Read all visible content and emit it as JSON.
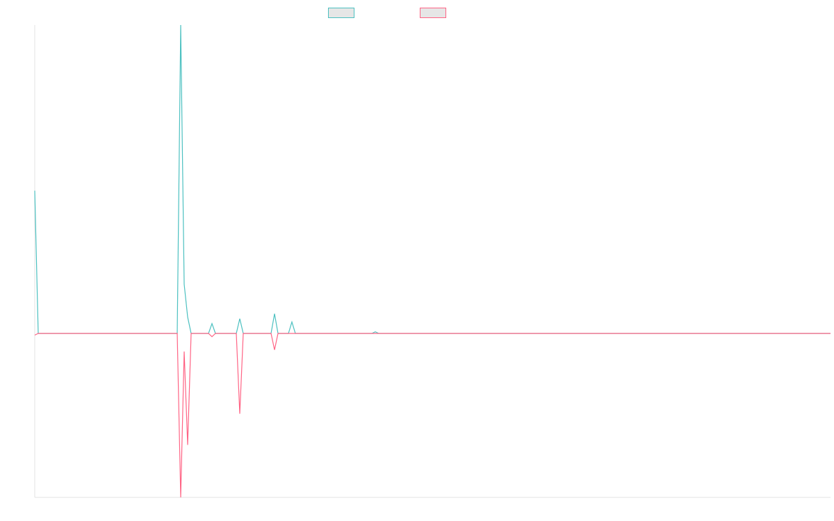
{
  "chart_data": {
    "type": "line",
    "title": "",
    "xlabel": "",
    "ylabel": "",
    "legend": "top-center",
    "grid": false,
    "ylim": [
      -1,
      1
    ],
    "x": [
      0,
      1,
      2,
      3,
      4,
      5,
      6,
      7,
      8,
      9,
      10,
      11,
      12,
      13,
      14,
      15,
      16,
      17,
      18,
      19,
      20,
      21,
      22,
      23,
      24,
      25,
      26,
      27,
      28,
      29,
      30,
      31,
      32,
      33,
      34,
      35,
      36,
      37,
      38,
      39,
      40,
      41,
      42,
      43,
      44,
      45,
      46,
      47,
      48,
      49,
      50,
      51,
      52,
      53,
      54,
      55,
      56,
      57,
      58,
      59,
      60,
      61,
      62,
      63,
      64,
      65,
      66,
      67,
      68,
      69,
      70,
      71,
      72,
      73,
      74,
      75,
      76,
      77,
      78,
      79,
      80,
      81,
      82,
      83,
      84,
      85,
      86,
      87,
      88,
      89,
      90,
      91,
      92,
      93,
      94,
      95,
      96,
      97,
      98,
      99,
      100,
      101,
      102,
      103,
      104,
      105,
      106,
      107,
      108,
      109,
      110,
      111,
      112,
      113,
      114,
      115,
      116,
      117,
      118,
      119,
      120,
      121,
      122,
      123,
      124,
      125,
      126,
      127,
      128,
      129,
      130,
      131,
      132,
      133,
      134,
      135,
      136,
      137,
      138,
      139,
      140,
      141,
      142,
      143,
      144,
      145,
      146,
      147,
      148,
      149,
      150,
      151,
      152,
      153,
      154,
      155,
      156,
      157,
      158,
      159,
      160,
      161,
      162,
      163,
      164,
      165,
      166,
      167,
      168,
      169,
      170,
      171,
      172,
      173,
      174,
      175,
      176,
      177,
      178,
      179,
      180,
      181,
      182,
      183,
      184,
      185,
      186,
      187,
      188,
      189,
      190,
      191,
      192,
      193,
      194,
      195,
      196,
      197,
      198,
      199,
      200,
      201,
      202,
      203,
      204,
      205,
      206,
      207,
      208,
      209,
      210,
      211,
      212,
      213,
      214,
      215,
      216,
      217,
      218,
      219,
      220,
      221,
      222,
      223,
      224,
      225,
      226,
      227,
      228,
      229
    ],
    "series": [
      {
        "name": "",
        "color": "#4bc0c0",
        "points": [
          [
            0,
            0.87
          ],
          [
            1,
            0
          ],
          [
            41,
            0
          ],
          [
            42,
            1.88
          ],
          [
            43,
            0.3
          ],
          [
            44,
            0.1
          ],
          [
            45,
            0
          ],
          [
            50,
            0
          ],
          [
            51,
            0.06
          ],
          [
            52,
            0
          ],
          [
            58,
            0
          ],
          [
            59,
            0.09
          ],
          [
            60,
            0
          ],
          [
            68,
            0
          ],
          [
            69,
            0.12
          ],
          [
            70,
            0
          ],
          [
            73,
            0
          ],
          [
            74,
            0.07
          ],
          [
            75,
            0
          ],
          [
            97,
            0
          ],
          [
            98,
            0.01
          ],
          [
            99,
            0
          ],
          [
            229,
            0
          ]
        ]
      },
      {
        "name": "",
        "color": "#ff6384",
        "points": [
          [
            0,
            -0.01
          ],
          [
            1,
            0
          ],
          [
            41,
            0
          ],
          [
            42,
            -1.0
          ],
          [
            43,
            -0.11
          ],
          [
            44,
            -0.68
          ],
          [
            45,
            0
          ],
          [
            50,
            0
          ],
          [
            51,
            -0.02
          ],
          [
            52,
            0
          ],
          [
            58,
            0
          ],
          [
            59,
            -0.49
          ],
          [
            60,
            0
          ],
          [
            68,
            0
          ],
          [
            69,
            -0.1
          ],
          [
            70,
            0
          ],
          [
            229,
            0
          ]
        ]
      }
    ]
  }
}
